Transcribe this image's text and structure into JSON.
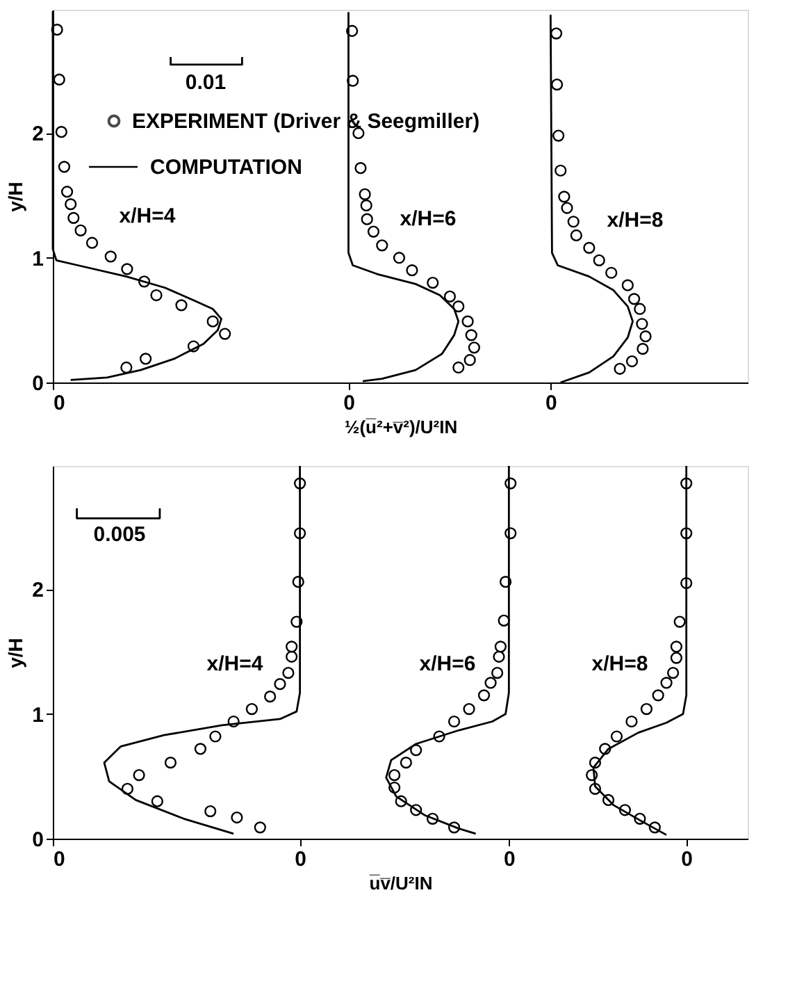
{
  "chart_data": [
    {
      "type": "scatter",
      "xlabel": "½(u̅²+v̅²)/U²IN",
      "ylabel": "y/H",
      "xlim": [
        0,
        0.0973
      ],
      "ylim": [
        0,
        2.99
      ],
      "xticks": [
        {
          "value": 0,
          "label": "0"
        },
        {
          "value": 0.0414,
          "label": "0"
        },
        {
          "value": 0.0697,
          "label": "0"
        }
      ],
      "yticks": [
        0,
        1,
        2
      ],
      "grid": false,
      "legend": "top left",
      "annotations": [
        "x/H=4",
        "x/H=6",
        "x/H=8",
        "0.01"
      ],
      "series": [
        {
          "name": "EXPERIMENT (Driver & Seegmiller)",
          "color": "#000000",
          "marker": "circle",
          "x": [
            0.0006,
            0.0009,
            0.0012,
            0.0016,
            0.002,
            0.0025,
            0.0029,
            0.0039,
            0.0055,
            0.0081,
            0.0104,
            0.0128,
            0.0145,
            0.018,
            0.0224,
            0.0241,
            0.0197,
            0.013,
            0.0103
          ],
          "values": [
            2.83,
            2.43,
            2.01,
            1.73,
            1.53,
            1.43,
            1.32,
            1.22,
            1.12,
            1.01,
            0.91,
            0.81,
            0.7,
            0.62,
            0.49,
            0.39,
            0.29,
            0.19,
            0.12
          ]
        },
        {
          "type": "line",
          "name": "COMPUTATION",
          "color": "#000000",
          "line_style": "solid",
          "x": [
            0,
            0,
            0.0005,
            0.0035,
            0.0103,
            0.0157,
            0.0197,
            0.0224,
            0.0236,
            0.0231,
            0.0211,
            0.017,
            0.0123,
            0.0076,
            0.0025
          ],
          "values": [
            2.98,
            1.07,
            0.98,
            0.94,
            0.85,
            0.76,
            0.66,
            0.59,
            0.51,
            0.42,
            0.31,
            0.19,
            0.1,
            0.04,
            0.02
          ]
        },
        {
          "color": "#000000",
          "marker": "circle",
          "x": [
            0.0419,
            0.042,
            0.0428,
            0.0431,
            0.0437,
            0.0439,
            0.044,
            0.0449,
            0.0461,
            0.0485,
            0.0503,
            0.0532,
            0.0556,
            0.0568,
            0.0581,
            0.0586,
            0.059,
            0.0584,
            0.0568
          ],
          "values": [
            2.82,
            2.42,
            2.0,
            1.72,
            1.51,
            1.42,
            1.31,
            1.21,
            1.1,
            1.0,
            0.9,
            0.8,
            0.69,
            0.61,
            0.49,
            0.38,
            0.28,
            0.18,
            0.12
          ]
        },
        {
          "type": "line",
          "color": "#000000",
          "line_style": "solid",
          "x": [
            0.0414,
            0.0414,
            0.042,
            0.0454,
            0.0508,
            0.0542,
            0.0562,
            0.0568,
            0.0562,
            0.0545,
            0.0508,
            0.0461,
            0.0434
          ],
          "values": [
            2.97,
            1.04,
            0.94,
            0.87,
            0.79,
            0.7,
            0.59,
            0.49,
            0.38,
            0.23,
            0.1,
            0.03,
            0.01
          ]
        },
        {
          "color": "#000000",
          "marker": "circle",
          "x": [
            0.0705,
            0.0706,
            0.0708,
            0.0711,
            0.0716,
            0.072,
            0.0729,
            0.0733,
            0.0751,
            0.0765,
            0.0782,
            0.0805,
            0.0814,
            0.0822,
            0.0825,
            0.083,
            0.0826,
            0.0811,
            0.0794
          ],
          "values": [
            2.8,
            2.39,
            1.98,
            1.7,
            1.49,
            1.4,
            1.29,
            1.18,
            1.08,
            0.98,
            0.88,
            0.78,
            0.67,
            0.59,
            0.47,
            0.37,
            0.27,
            0.17,
            0.11
          ]
        },
        {
          "type": "line",
          "color": "#000000",
          "line_style": "solid",
          "x": [
            0.0697,
            0.0699,
            0.0707,
            0.0751,
            0.0785,
            0.0805,
            0.0812,
            0.0805,
            0.0785,
            0.0751,
            0.0711
          ],
          "values": [
            2.95,
            1.04,
            0.94,
            0.85,
            0.74,
            0.61,
            0.49,
            0.36,
            0.21,
            0.08,
            0
          ]
        },
        {
          "type": "line",
          "color": "#000000",
          "line_style": "solid",
          "x": [
            0.0165,
            0.0165,
            0.0265,
            0.0265
          ],
          "values": [
            2.61,
            2.55,
            2.55,
            2.61
          ]
        }
      ]
    },
    {
      "type": "scatter",
      "xlabel": "u̅v̅/U²IN",
      "ylabel": "y/H",
      "xlim": [
        0,
        0.0419
      ],
      "ylim": [
        0,
        2.99
      ],
      "xticks": [
        {
          "value": 0,
          "label": "0"
        },
        {
          "value": 0.0149,
          "label": "0"
        },
        {
          "value": 0.0275,
          "label": "0"
        },
        {
          "value": 0.0382,
          "label": "0"
        }
      ],
      "yticks": [
        0,
        1,
        2
      ],
      "grid": false,
      "annotations": [
        "x/H=4",
        "x/H=6",
        "x/H=8",
        "0.005"
      ],
      "series": [
        {
          "color": "#000000",
          "marker": "circle",
          "x": [
            0.0149,
            0.0149,
            0.0148,
            0.0147,
            0.0144,
            0.0144,
            0.0142,
            0.0137,
            0.0131,
            0.012,
            0.0109,
            0.0098,
            0.0089,
            0.0071,
            0.0052,
            0.0045,
            0.0063,
            0.0095,
            0.0111,
            0.0125
          ],
          "values": [
            2.85,
            2.45,
            2.06,
            1.74,
            1.54,
            1.46,
            1.33,
            1.24,
            1.14,
            1.04,
            0.94,
            0.82,
            0.72,
            0.61,
            0.51,
            0.4,
            0.3,
            0.22,
            0.17,
            0.09
          ]
        },
        {
          "type": "line",
          "color": "#000000",
          "line_style": "solid",
          "x": [
            0.0149,
            0.0149,
            0.0147,
            0.0137,
            0.0102,
            0.0067,
            0.0041,
            0.0031,
            0.0034,
            0.005,
            0.0079,
            0.0109
          ],
          "values": [
            2.99,
            1.17,
            1.02,
            0.96,
            0.91,
            0.83,
            0.74,
            0.61,
            0.46,
            0.31,
            0.16,
            0.04
          ]
        },
        {
          "color": "#000000",
          "marker": "circle",
          "x": [
            0.0276,
            0.0276,
            0.0273,
            0.0272,
            0.027,
            0.0269,
            0.0268,
            0.0264,
            0.026,
            0.0251,
            0.0242,
            0.0233,
            0.0219,
            0.0213,
            0.0206,
            0.0206,
            0.021,
            0.0219,
            0.0229,
            0.0242
          ],
          "values": [
            2.85,
            2.45,
            2.06,
            1.75,
            1.54,
            1.46,
            1.33,
            1.25,
            1.15,
            1.04,
            0.94,
            0.82,
            0.71,
            0.61,
            0.51,
            0.41,
            0.3,
            0.23,
            0.16,
            0.09
          ]
        },
        {
          "type": "line",
          "color": "#000000",
          "line_style": "solid",
          "x": [
            0.0275,
            0.0275,
            0.0273,
            0.0265,
            0.0245,
            0.0219,
            0.0204,
            0.0201,
            0.0207,
            0.0224,
            0.0245,
            0.0255
          ],
          "values": [
            2.99,
            1.17,
            1.0,
            0.94,
            0.87,
            0.76,
            0.63,
            0.49,
            0.34,
            0.19,
            0.08,
            0.04
          ]
        },
        {
          "color": "#000000",
          "marker": "circle",
          "x": [
            0.0382,
            0.0382,
            0.0382,
            0.0378,
            0.0376,
            0.0376,
            0.0374,
            0.037,
            0.0365,
            0.0358,
            0.0349,
            0.034,
            0.0333,
            0.0327,
            0.0325,
            0.0327,
            0.0335,
            0.0345,
            0.0354,
            0.0363
          ],
          "values": [
            2.85,
            2.45,
            2.05,
            1.74,
            1.54,
            1.45,
            1.33,
            1.25,
            1.15,
            1.04,
            0.94,
            0.82,
            0.72,
            0.61,
            0.51,
            0.4,
            0.31,
            0.23,
            0.16,
            0.09
          ]
        },
        {
          "type": "line",
          "color": "#000000",
          "line_style": "solid",
          "x": [
            0.0382,
            0.0382,
            0.038,
            0.037,
            0.0353,
            0.0335,
            0.0326,
            0.0327,
            0.0338,
            0.0355,
            0.037
          ],
          "values": [
            2.99,
            1.15,
            1.0,
            0.93,
            0.85,
            0.72,
            0.57,
            0.42,
            0.27,
            0.14,
            0.03
          ]
        },
        {
          "type": "line",
          "color": "#000000",
          "line_style": "solid",
          "x": [
            0.00145,
            0.00145,
            0.00645,
            0.00645
          ],
          "values": [
            2.65,
            2.57,
            2.57,
            2.65
          ]
        }
      ]
    }
  ]
}
